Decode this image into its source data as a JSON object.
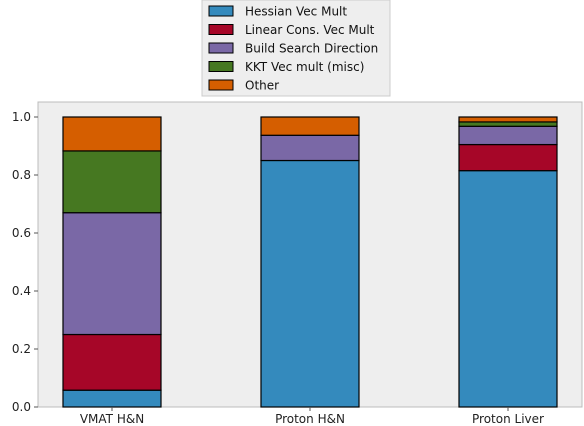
{
  "chart_data": {
    "type": "bar",
    "stacked": true,
    "categories": [
      "VMAT H&N",
      "Proton H&N",
      "Proton Liver"
    ],
    "series": [
      {
        "name": "Hessian Vec Mult",
        "color": "#348ABD",
        "values": [
          0.058,
          0.85,
          0.815
        ]
      },
      {
        "name": "Linear Cons. Vec Mult",
        "color": "#A60628",
        "values": [
          0.192,
          0.0,
          0.09
        ]
      },
      {
        "name": "Build Search Direction",
        "color": "#7A68A6",
        "values": [
          0.42,
          0.087,
          0.063
        ]
      },
      {
        "name": "KKT Vec mult (misc)",
        "color": "#467821",
        "values": [
          0.213,
          0.0,
          0.015
        ]
      },
      {
        "name": "Other",
        "color": "#D55E00",
        "values": [
          0.117,
          0.063,
          0.017
        ]
      }
    ],
    "y_ticks": [
      "0.0",
      "0.2",
      "0.4",
      "0.6",
      "0.8",
      "1.0"
    ],
    "ylim": [
      0,
      1.05
    ],
    "grid": false,
    "legend_position": "top-center",
    "background": "#EEEEEE"
  }
}
